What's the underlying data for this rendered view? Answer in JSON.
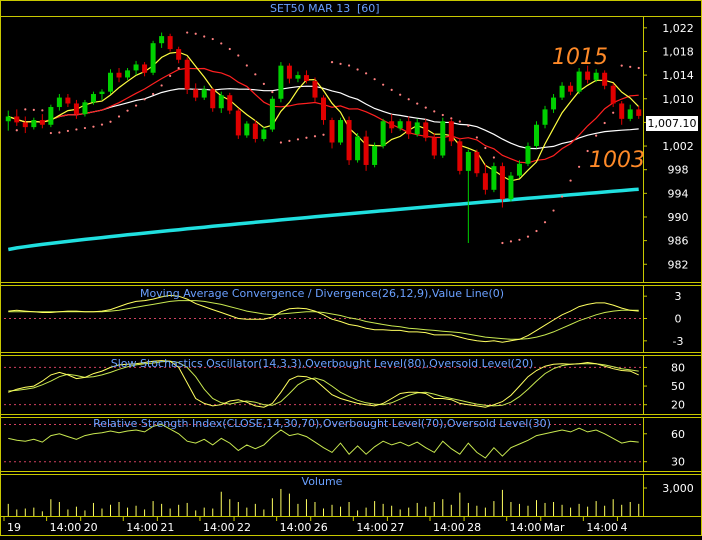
{
  "header": {
    "symbol": "SET50 MAR 13",
    "interval": "[60]"
  },
  "colors": {
    "background": "#000000",
    "panel_border": "#c8c800",
    "up_candle": "#00d000",
    "down_candle": "#e00000",
    "ma_fast": "#ffff40",
    "ma_slow": "#ff2020",
    "ma_white": "#ffffff",
    "ma_cyan": "#20e0e0",
    "sar": "#ff8080",
    "title_text": "#6aa0ff",
    "annotation": "#ff8a28",
    "price_label_bg": "#ffffff"
  },
  "chart_data": [
    {
      "type": "candlestick",
      "panel": "price",
      "ylim": [
        979,
        1024
      ],
      "yticks": [
        982,
        986,
        990,
        994,
        998,
        1002,
        1006,
        1010,
        1014,
        1018,
        1022
      ],
      "ytick_labels": [
        "982",
        "986",
        "990",
        "994",
        "998",
        "1,002",
        "1,006",
        "1,010",
        "1,014",
        "1,018",
        "1,022"
      ],
      "last_price_label": "1,007.10",
      "last_price": 1007.1,
      "annotations": [
        {
          "text": "1015",
          "value": 1015,
          "bar": 67
        },
        {
          "text": "1003",
          "value": 1003,
          "bar": 72
        }
      ],
      "candles": [
        [
          1006.2,
          1008.0,
          1004.6,
          1007.0
        ],
        [
          1007.0,
          1008.2,
          1005.4,
          1006.0
        ],
        [
          1006.0,
          1007.0,
          1004.2,
          1005.2
        ],
        [
          1005.2,
          1006.8,
          1004.8,
          1006.4
        ],
        [
          1006.4,
          1007.4,
          1005.0,
          1005.6
        ],
        [
          1005.6,
          1009.0,
          1005.2,
          1008.6
        ],
        [
          1008.6,
          1010.8,
          1008.0,
          1010.2
        ],
        [
          1010.2,
          1010.8,
          1008.6,
          1009.2
        ],
        [
          1009.2,
          1009.8,
          1006.6,
          1007.4
        ],
        [
          1007.4,
          1009.8,
          1007.0,
          1009.4
        ],
        [
          1009.4,
          1011.2,
          1009.0,
          1010.8
        ],
        [
          1010.8,
          1011.6,
          1009.8,
          1011.2
        ],
        [
          1011.2,
          1015.0,
          1010.8,
          1014.4
        ],
        [
          1014.4,
          1015.2,
          1012.8,
          1013.6
        ],
        [
          1013.6,
          1015.2,
          1013.2,
          1014.8
        ],
        [
          1014.8,
          1016.4,
          1014.0,
          1015.8
        ],
        [
          1015.8,
          1016.2,
          1013.8,
          1014.4
        ],
        [
          1014.4,
          1019.8,
          1014.0,
          1019.4
        ],
        [
          1019.4,
          1021.2,
          1018.6,
          1020.6
        ],
        [
          1020.6,
          1021.0,
          1018.0,
          1018.4
        ],
        [
          1018.4,
          1018.8,
          1016.0,
          1016.6
        ],
        [
          1016.6,
          1017.0,
          1010.8,
          1011.6
        ],
        [
          1011.6,
          1012.6,
          1009.6,
          1010.2
        ],
        [
          1010.2,
          1012.2,
          1009.8,
          1011.6
        ],
        [
          1011.6,
          1011.8,
          1007.8,
          1008.4
        ],
        [
          1008.4,
          1011.2,
          1007.6,
          1010.6
        ],
        [
          1010.6,
          1011.0,
          1007.4,
          1008.0
        ],
        [
          1008.0,
          1008.4,
          1003.2,
          1003.8
        ],
        [
          1003.8,
          1006.2,
          1003.4,
          1005.8
        ],
        [
          1005.8,
          1006.4,
          1002.6,
          1003.2
        ],
        [
          1003.2,
          1005.2,
          1002.8,
          1004.8
        ],
        [
          1004.8,
          1010.4,
          1004.4,
          1010.0
        ],
        [
          1010.0,
          1016.2,
          1009.4,
          1015.6
        ],
        [
          1015.6,
          1016.0,
          1012.6,
          1013.4
        ],
        [
          1013.4,
          1014.6,
          1012.8,
          1014.0
        ],
        [
          1014.0,
          1014.8,
          1012.6,
          1013.0
        ],
        [
          1013.0,
          1013.6,
          1009.4,
          1010.2
        ],
        [
          1010.2,
          1010.6,
          1005.6,
          1006.4
        ],
        [
          1006.4,
          1006.8,
          1001.6,
          1002.6
        ],
        [
          1002.6,
          1006.8,
          1002.2,
          1006.4
        ],
        [
          1006.4,
          1007.0,
          998.8,
          999.6
        ],
        [
          999.6,
          1004.2,
          999.2,
          1003.6
        ],
        [
          1003.6,
          1004.6,
          997.8,
          998.8
        ],
        [
          998.8,
          1002.6,
          998.4,
          1002.0
        ],
        [
          1002.0,
          1006.6,
          1001.6,
          1006.2
        ],
        [
          1006.2,
          1007.4,
          1004.2,
          1005.0
        ],
        [
          1005.0,
          1006.6,
          1004.6,
          1006.2
        ],
        [
          1006.2,
          1007.0,
          1003.2,
          1004.0
        ],
        [
          1004.0,
          1006.6,
          1003.6,
          1006.0
        ],
        [
          1006.0,
          1006.6,
          1002.8,
          1003.4
        ],
        [
          1003.4,
          1004.2,
          999.8,
          1000.4
        ],
        [
          1000.4,
          1006.8,
          1000.0,
          1006.2
        ],
        [
          1006.2,
          1006.6,
          1002.0,
          1002.8
        ],
        [
          1002.8,
          1003.4,
          997.2,
          997.8
        ],
        [
          997.8,
          1001.4,
          985.6,
          1001.0
        ],
        [
          1001.0,
          1001.4,
          996.8,
          997.4
        ],
        [
          997.4,
          999.0,
          993.8,
          994.6
        ],
        [
          994.6,
          999.2,
          994.2,
          998.6
        ],
        [
          998.6,
          999.2,
          991.6,
          993.0
        ],
        [
          993.0,
          997.6,
          992.6,
          997.0
        ],
        [
          997.0,
          999.6,
          996.6,
          999.0
        ],
        [
          999.0,
          1002.6,
          998.6,
          1002.0
        ],
        [
          1002.0,
          1006.2,
          1001.6,
          1005.6
        ],
        [
          1005.6,
          1008.8,
          1005.0,
          1008.2
        ],
        [
          1008.2,
          1010.8,
          1007.6,
          1010.2
        ],
        [
          1010.2,
          1012.8,
          1009.8,
          1012.2
        ],
        [
          1012.2,
          1012.8,
          1010.6,
          1011.2
        ],
        [
          1011.2,
          1015.2,
          1010.8,
          1014.6
        ],
        [
          1014.6,
          1015.6,
          1012.6,
          1013.2
        ],
        [
          1013.2,
          1015.0,
          1012.8,
          1014.4
        ],
        [
          1014.4,
          1014.8,
          1011.6,
          1012.2
        ],
        [
          1012.2,
          1012.6,
          1008.6,
          1009.2
        ],
        [
          1009.2,
          1009.6,
          1005.6,
          1006.6
        ],
        [
          1006.6,
          1009.0,
          1006.2,
          1008.2
        ],
        [
          1008.2,
          1008.8,
          1006.6,
          1007.1
        ]
      ]
    },
    {
      "type": "line",
      "panel": "macd",
      "title": "Moving Average Convergence / Divergence(26,12,9),Value Line(0)",
      "ylim": [
        -4.5,
        4.5
      ],
      "yticks": [
        3,
        0,
        -3
      ],
      "ytick_labels": [
        "3",
        "0",
        "-3"
      ],
      "reference_lines": [
        0
      ],
      "series": [
        {
          "values": [
            1.0,
            1.1,
            1.0,
            0.9,
            0.8,
            0.8,
            0.9,
            1.0,
            1.0,
            0.9,
            0.9,
            1.0,
            1.2,
            1.6,
            2.0,
            2.3,
            2.4,
            2.6,
            2.9,
            3.1,
            3.0,
            2.6,
            2.0,
            1.6,
            1.2,
            0.8,
            0.4,
            0.0,
            -0.1,
            -0.1,
            -0.1,
            0.2,
            0.9,
            1.3,
            1.4,
            1.3,
            1.0,
            0.5,
            -0.1,
            -0.4,
            -0.8,
            -1.0,
            -1.3,
            -1.5,
            -1.5,
            -1.6,
            -1.6,
            -1.8,
            -1.8,
            -1.9,
            -2.2,
            -2.2,
            -2.2,
            -2.5,
            -2.8,
            -3.0,
            -3.1,
            -3.0,
            -3.2,
            -3.0,
            -2.8,
            -2.3,
            -1.6,
            -0.9,
            -0.2,
            0.5,
            1.0,
            1.6,
            1.9,
            2.1,
            2.1,
            1.8,
            1.4,
            1.1,
            1.0
          ]
        },
        {
          "values": [
            0.9,
            0.9,
            0.9,
            0.9,
            0.9,
            0.9,
            0.9,
            0.9,
            0.9,
            0.9,
            0.9,
            0.9,
            1.0,
            1.1,
            1.3,
            1.5,
            1.7,
            1.9,
            2.1,
            2.3,
            2.4,
            2.4,
            2.4,
            2.3,
            2.1,
            1.9,
            1.6,
            1.3,
            1.0,
            0.8,
            0.6,
            0.5,
            0.6,
            0.7,
            0.8,
            0.9,
            0.9,
            0.8,
            0.6,
            0.4,
            0.1,
            -0.1,
            -0.4,
            -0.6,
            -0.8,
            -1.0,
            -1.1,
            -1.3,
            -1.4,
            -1.5,
            -1.6,
            -1.7,
            -1.8,
            -1.9,
            -2.1,
            -2.3,
            -2.5,
            -2.6,
            -2.7,
            -2.8,
            -2.8,
            -2.7,
            -2.5,
            -2.2,
            -1.8,
            -1.3,
            -0.8,
            -0.3,
            0.1,
            0.5,
            0.8,
            1.0,
            1.1,
            1.1,
            1.1
          ]
        }
      ]
    },
    {
      "type": "line",
      "panel": "stochastic",
      "title": "Slow Stochastics Oscillator(14,3,3),Overbought Level(80),Oversold Level(20)",
      "ylim": [
        5,
        100
      ],
      "yticks": [
        80,
        50,
        20
      ],
      "ytick_labels": [
        "80",
        "50",
        "20"
      ],
      "reference_lines": [
        80,
        20
      ],
      "series": [
        {
          "values": [
            40,
            45,
            48,
            50,
            58,
            68,
            72,
            68,
            62,
            64,
            70,
            74,
            80,
            84,
            85,
            86,
            88,
            90,
            91,
            90,
            80,
            55,
            30,
            22,
            18,
            20,
            26,
            28,
            24,
            18,
            16,
            22,
            40,
            60,
            66,
            65,
            60,
            48,
            36,
            30,
            26,
            22,
            20,
            18,
            22,
            30,
            38,
            40,
            40,
            38,
            30,
            30,
            28,
            22,
            20,
            18,
            16,
            20,
            25,
            35,
            50,
            65,
            75,
            82,
            85,
            86,
            85,
            86,
            88,
            86,
            82,
            78,
            75,
            74,
            68
          ]
        },
        {
          "values": [
            42,
            43,
            45,
            47,
            52,
            58,
            65,
            69,
            67,
            64,
            65,
            68,
            72,
            77,
            81,
            84,
            86,
            87,
            89,
            90,
            88,
            80,
            65,
            45,
            30,
            23,
            21,
            24,
            26,
            24,
            20,
            19,
            25,
            38,
            52,
            60,
            63,
            59,
            50,
            40,
            33,
            27,
            23,
            21,
            20,
            23,
            29,
            35,
            39,
            40,
            37,
            33,
            30,
            27,
            24,
            21,
            19,
            18,
            19,
            24,
            33,
            45,
            58,
            70,
            78,
            83,
            85,
            86,
            86,
            86,
            84,
            81,
            78,
            76,
            74
          ]
        }
      ]
    },
    {
      "type": "line",
      "panel": "rsi",
      "title": "Relative Strength Index(CLOSE,14,30,70),Overbought Level(70),Oversold Level(30)",
      "ylim": [
        20,
        78
      ],
      "yticks": [
        60,
        30
      ],
      "ytick_labels": [
        "60",
        "30"
      ],
      "reference_lines": [
        70,
        30
      ],
      "series": [
        {
          "values": [
            55,
            53,
            52,
            54,
            51,
            58,
            60,
            57,
            54,
            58,
            60,
            61,
            63,
            61,
            63,
            64,
            62,
            68,
            70,
            65,
            60,
            52,
            50,
            54,
            48,
            55,
            50,
            42,
            48,
            44,
            48,
            57,
            64,
            58,
            60,
            57,
            51,
            45,
            40,
            50,
            38,
            47,
            38,
            46,
            52,
            48,
            51,
            47,
            51,
            45,
            40,
            52,
            44,
            38,
            50,
            40,
            34,
            45,
            36,
            45,
            49,
            53,
            58,
            60,
            62,
            64,
            62,
            66,
            62,
            64,
            60,
            55,
            50,
            52,
            51
          ]
        }
      ]
    },
    {
      "type": "bar",
      "panel": "volume",
      "title": "Volume",
      "ylim": [
        0,
        4500
      ],
      "yticks": [
        3000
      ],
      "ytick_labels": [
        "3,000"
      ],
      "values": [
        1300,
        700,
        800,
        900,
        500,
        1800,
        1500,
        700,
        1000,
        600,
        1400,
        800,
        1200,
        1500,
        900,
        1100,
        700,
        1600,
        1300,
        800,
        1200,
        1400,
        600,
        900,
        800,
        2600,
        1800,
        1500,
        900,
        1300,
        700,
        1900,
        2900,
        2400,
        1300,
        1800,
        1500,
        800,
        1200,
        1000,
        1500,
        600,
        900,
        1600,
        1300,
        1100,
        700,
        900,
        1400,
        1000,
        1500,
        1800,
        1200,
        2500,
        1400,
        1100,
        900,
        1600,
        2800,
        1500,
        1300,
        1100,
        1700,
        1400,
        1500,
        1200,
        900,
        1300,
        1000,
        1600,
        1100,
        1800,
        1200,
        1500,
        1300
      ]
    }
  ],
  "x_axis": {
    "labels": [
      "19",
      "14:00",
      "20",
      "14:00",
      "21",
      "14:00",
      "22",
      "14:00",
      "26",
      "14:00",
      "27",
      "14:00",
      "28",
      "14:00",
      "Mar",
      "14:00",
      "4"
    ],
    "label_bars": [
      0,
      5,
      9,
      14,
      18,
      23,
      27,
      32,
      36,
      41,
      45,
      50,
      54,
      59,
      63,
      68,
      72
    ]
  }
}
